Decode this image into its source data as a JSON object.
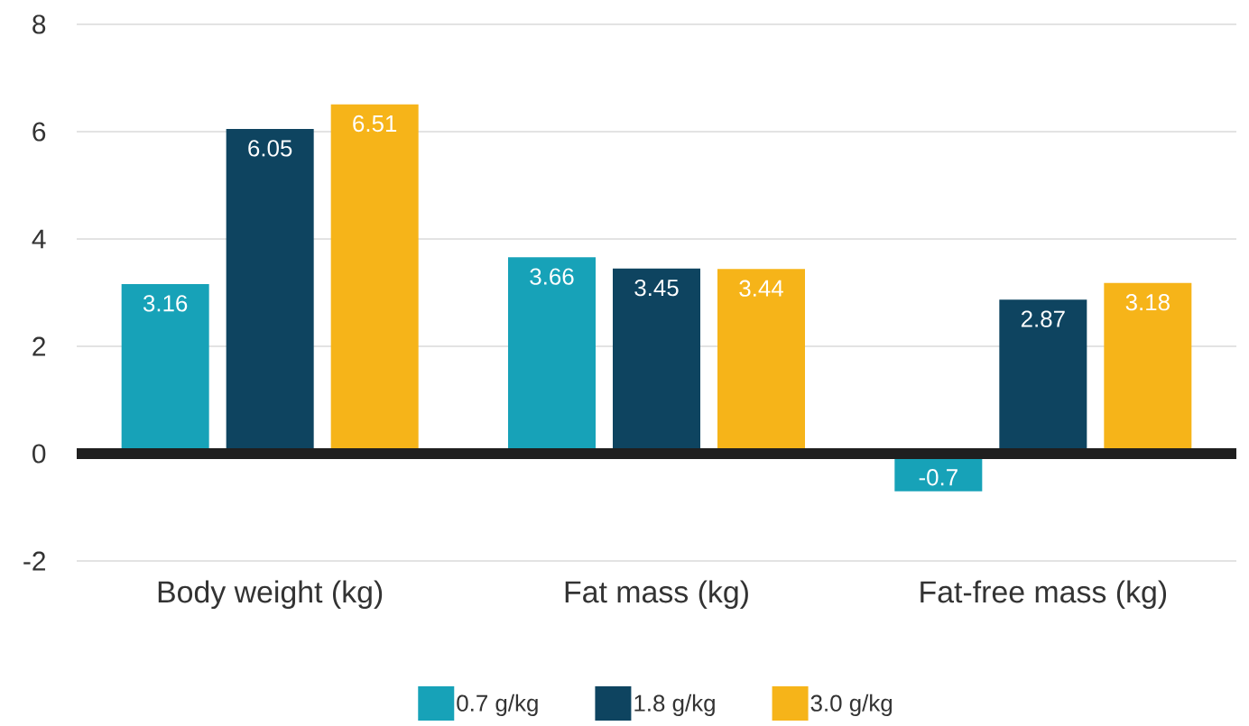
{
  "chart_data": {
    "type": "bar",
    "categories": [
      "Body weight (kg)",
      "Fat mass (kg)",
      "Fat-free mass (kg)"
    ],
    "series": [
      {
        "name": "0.7 g/kg",
        "color": "#17a2b8",
        "values": [
          3.16,
          3.66,
          -0.7
        ]
      },
      {
        "name": "1.8 g/kg",
        "color": "#0e4460",
        "values": [
          6.05,
          3.45,
          2.87
        ]
      },
      {
        "name": "3.0 g/kg",
        "color": "#f6b419",
        "values": [
          6.51,
          3.44,
          3.18
        ]
      }
    ],
    "ylim": [
      -2,
      8
    ],
    "yticks": [
      -2,
      0,
      2,
      4,
      6,
      8
    ],
    "grid": "y",
    "data_labels": true,
    "legend": "bottom"
  }
}
